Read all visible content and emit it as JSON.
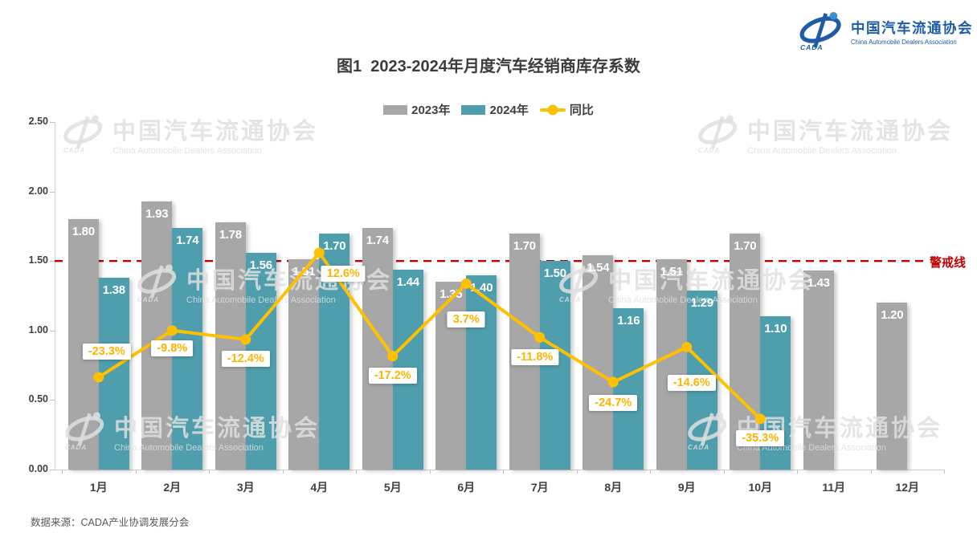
{
  "header": {
    "logo": {
      "acronym": "CADA",
      "name_cn": "中国汽车流通协会",
      "name_en": "China Automobile Dealers Association",
      "color": "#1E5CA8"
    },
    "title": "图1  2023-2024年月度汽车经销商库存系数"
  },
  "legend": {
    "items": [
      {
        "label": "2023年",
        "color": "#A7A7A7",
        "type": "bar"
      },
      {
        "label": "2024年",
        "color": "#4F9EAD",
        "type": "bar"
      },
      {
        "label": "同比",
        "color": "#FFC000",
        "type": "line"
      }
    ]
  },
  "watermark": {
    "acronym": "CADA",
    "name_cn": "中国汽车流通协会",
    "name_en": "China Automobile Dealers Association"
  },
  "footer": {
    "source": "数据来源：CADA产业协调发展分会"
  },
  "chart_data": {
    "type": "bar",
    "subtype": "grouped-bars-with-line",
    "title": "图1  2023-2024年月度汽车经销商库存系数",
    "categories": [
      "1月",
      "2月",
      "3月",
      "4月",
      "5月",
      "6月",
      "7月",
      "8月",
      "9月",
      "10月",
      "11月",
      "12月"
    ],
    "series": [
      {
        "name": "2023年",
        "type": "bar",
        "color": "#A7A7A7",
        "values": [
          1.8,
          1.93,
          1.78,
          1.51,
          1.74,
          1.35,
          1.7,
          1.54,
          1.51,
          1.7,
          1.43,
          1.2
        ],
        "display_values": [
          "1.80",
          "1.93",
          "1.78",
          "1.51",
          "1.74",
          "1.35",
          "1.70",
          "1.54",
          "1.51",
          "1.70",
          "1.43",
          "1.20"
        ]
      },
      {
        "name": "2024年",
        "type": "bar",
        "color": "#4F9EAD",
        "values": [
          1.38,
          1.74,
          1.56,
          1.7,
          1.44,
          1.4,
          1.5,
          1.16,
          1.29,
          1.1,
          null,
          null
        ],
        "display_values": [
          "1.38",
          "1.74",
          "1.56",
          "1.70",
          "1.44",
          "1.40",
          "1.50",
          "1.16",
          "1.29",
          "1.10"
        ]
      },
      {
        "name": "同比",
        "type": "line",
        "color": "#FFC000",
        "unit": "%",
        "values": [
          -23.3,
          -9.8,
          -12.4,
          12.6,
          -17.2,
          3.7,
          -11.8,
          -24.7,
          -14.6,
          -35.3,
          null,
          null
        ],
        "display_values": [
          "-23.3%",
          "-9.8%",
          "-12.4%",
          "12.6%",
          "-17.2%",
          "3.7%",
          "-11.8%",
          "-24.7%",
          "-14.6%",
          "-35.3%"
        ]
      }
    ],
    "y_axis": {
      "min": 0,
      "max": 2.5,
      "ticks": [
        "0.00",
        "0.50",
        "1.00",
        "1.50",
        "2.00",
        "2.50"
      ]
    },
    "reference_line": {
      "value": 1.5,
      "label": "警戒线",
      "color": "#C00000",
      "style": "dashed"
    },
    "legend_position": "top",
    "grid": false
  }
}
